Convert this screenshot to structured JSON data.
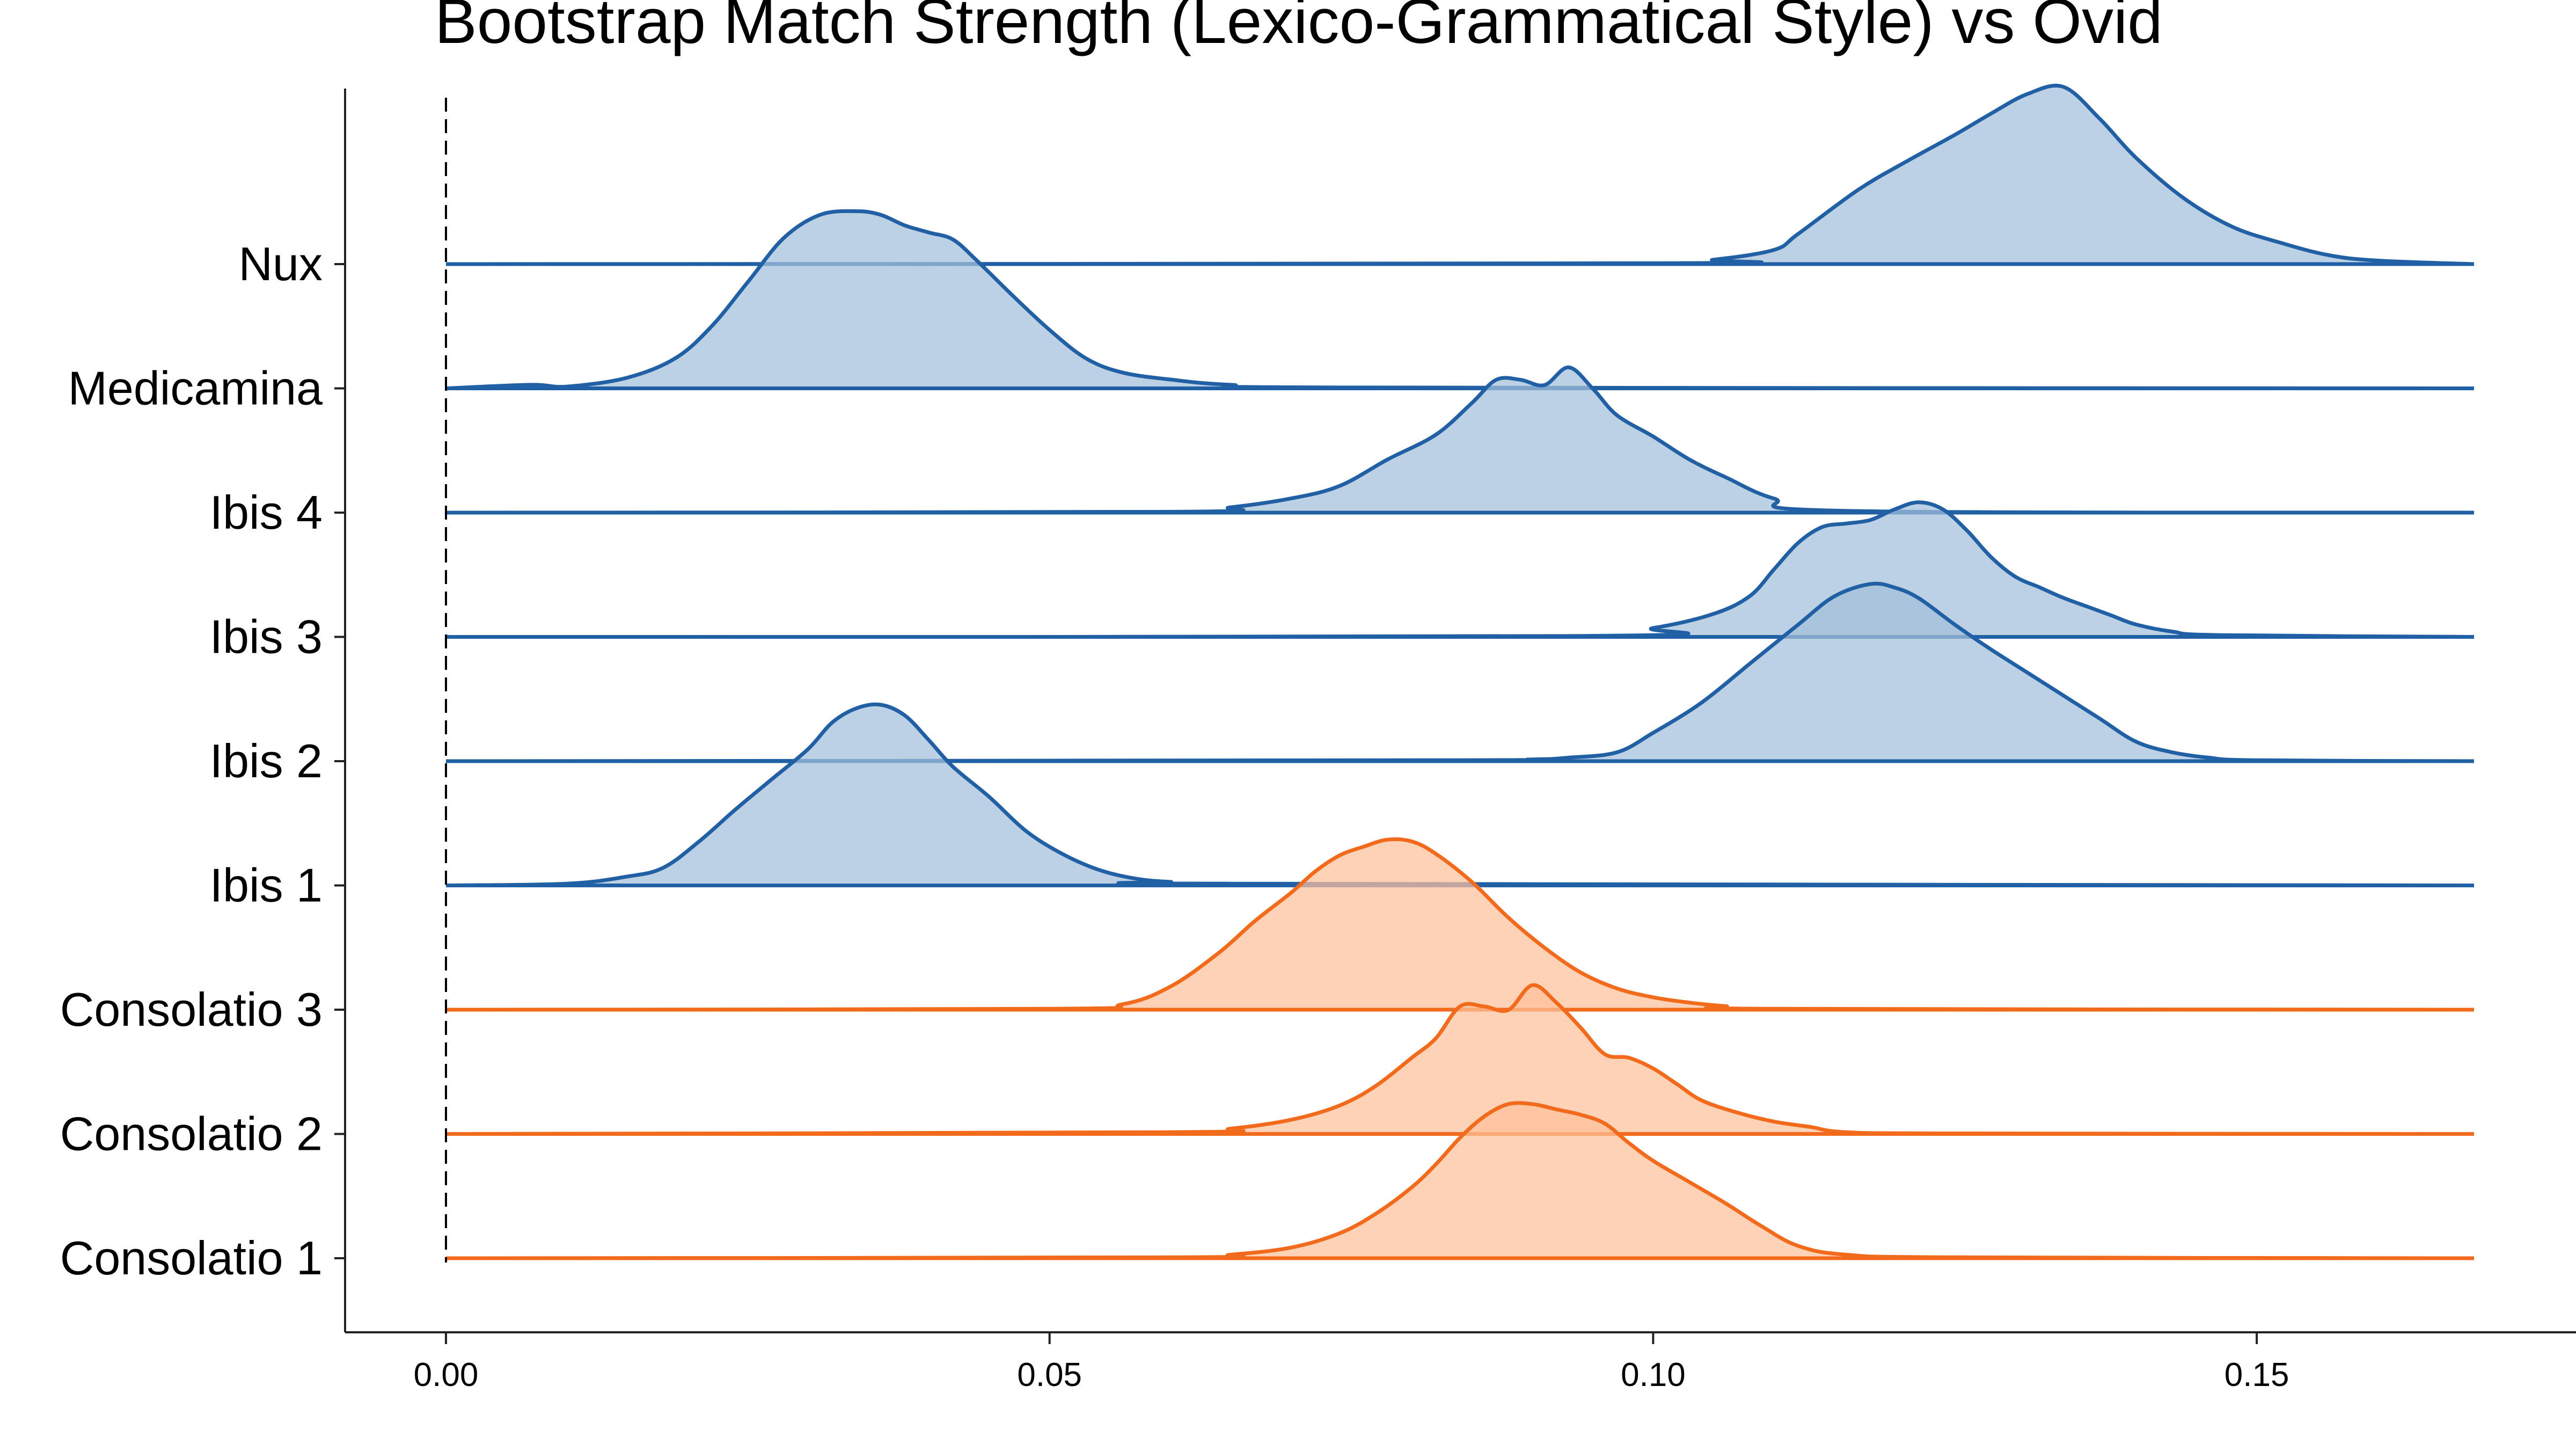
{
  "chart_data": {
    "type": "ridgeline",
    "title": "Bootstrap Match Strength (Lexico-Grammatical Style) vs Ovid",
    "xlabel": "",
    "ylabel": "",
    "xlim": [
      -0.0085,
      0.17
    ],
    "x_ticks": [
      "0.00",
      "0.05",
      "0.10",
      "0.15"
    ],
    "x_tick_values": [
      0.0,
      0.05,
      0.1,
      0.15
    ],
    "reference_line_x": 0.0,
    "grid": false,
    "colors": {
      "blue_line": "#2160a4",
      "blue_fill": "#a3bfdb",
      "orange_line": "#f26a1b",
      "orange_fill": "#fdc19b"
    },
    "series": [
      {
        "name": "Nux",
        "group": "blue",
        "x": [
          0.0,
          0.1,
          0.105,
          0.11,
          0.112,
          0.117,
          0.121,
          0.125,
          0.128,
          0.131,
          0.134,
          0.137,
          0.14,
          0.144,
          0.148,
          0.152,
          0.156,
          0.16,
          0.168
        ],
        "density": [
          0,
          0.005,
          0.025,
          0.08,
          0.17,
          0.42,
          0.58,
          0.73,
          0.85,
          0.96,
          1.0,
          0.82,
          0.6,
          0.37,
          0.21,
          0.12,
          0.05,
          0.02,
          0
        ]
      },
      {
        "name": "Medicamina",
        "group": "blue",
        "x": [
          0.0,
          0.007,
          0.01,
          0.015,
          0.019,
          0.022,
          0.025,
          0.028,
          0.031,
          0.034,
          0.036,
          0.038,
          0.04,
          0.042,
          0.044,
          0.047,
          0.05,
          0.053,
          0.056,
          0.06,
          0.065,
          0.075,
          0.168
        ],
        "density": [
          0,
          0.02,
          0.01,
          0.06,
          0.17,
          0.35,
          0.6,
          0.85,
          0.98,
          1.0,
          0.98,
          0.92,
          0.88,
          0.84,
          0.72,
          0.52,
          0.33,
          0.17,
          0.09,
          0.05,
          0.02,
          0.005,
          0
        ]
      },
      {
        "name": "Ibis 4",
        "group": "blue",
        "x": [
          0.0,
          0.06,
          0.065,
          0.07,
          0.074,
          0.078,
          0.082,
          0.085,
          0.087,
          0.089,
          0.091,
          0.093,
          0.095,
          0.097,
          0.1,
          0.103,
          0.106,
          0.11,
          0.116,
          0.168
        ],
        "density": [
          0,
          0.005,
          0.03,
          0.08,
          0.15,
          0.3,
          0.44,
          0.62,
          0.75,
          0.75,
          0.72,
          0.82,
          0.7,
          0.55,
          0.43,
          0.3,
          0.2,
          0.08,
          0.01,
          0
        ]
      },
      {
        "name": "Ibis 3",
        "group": "blue",
        "x": [
          0.0,
          0.094,
          0.1,
          0.105,
          0.108,
          0.11,
          0.112,
          0.114,
          0.116,
          0.118,
          0.12,
          0.122,
          0.124,
          0.126,
          0.128,
          0.13,
          0.132,
          0.134,
          0.136,
          0.138,
          0.14,
          0.143,
          0.147,
          0.168
        ],
        "density": [
          0,
          0.005,
          0.05,
          0.13,
          0.23,
          0.38,
          0.53,
          0.62,
          0.64,
          0.66,
          0.72,
          0.76,
          0.72,
          0.6,
          0.45,
          0.34,
          0.28,
          0.22,
          0.17,
          0.12,
          0.07,
          0.03,
          0.01,
          0
        ]
      },
      {
        "name": "Ibis 2",
        "group": "blue",
        "x": [
          0.0,
          0.08,
          0.09,
          0.093,
          0.097,
          0.1,
          0.104,
          0.108,
          0.112,
          0.115,
          0.118,
          0.12,
          0.122,
          0.125,
          0.128,
          0.131,
          0.134,
          0.137,
          0.14,
          0.143,
          0.146,
          0.15,
          0.168
        ],
        "density": [
          0,
          0.005,
          0.01,
          0.02,
          0.05,
          0.16,
          0.33,
          0.55,
          0.77,
          0.93,
          1.0,
          0.98,
          0.92,
          0.77,
          0.63,
          0.5,
          0.37,
          0.24,
          0.11,
          0.05,
          0.02,
          0.005,
          0
        ]
      },
      {
        "name": "Ibis 1",
        "group": "blue",
        "x": [
          0.0,
          0.01,
          0.015,
          0.018,
          0.021,
          0.024,
          0.027,
          0.03,
          0.032,
          0.034,
          0.036,
          0.038,
          0.04,
          0.042,
          0.045,
          0.048,
          0.051,
          0.054,
          0.057,
          0.06,
          0.065,
          0.168
        ],
        "density": [
          0,
          0.01,
          0.05,
          0.1,
          0.25,
          0.43,
          0.6,
          0.77,
          0.92,
          1.0,
          1.02,
          0.96,
          0.82,
          0.67,
          0.5,
          0.31,
          0.18,
          0.09,
          0.04,
          0.02,
          0.01,
          0
        ]
      },
      {
        "name": "Consolatio 3",
        "group": "orange",
        "x": [
          0.0,
          0.05,
          0.056,
          0.06,
          0.064,
          0.067,
          0.07,
          0.072,
          0.074,
          0.076,
          0.078,
          0.08,
          0.082,
          0.085,
          0.088,
          0.091,
          0.094,
          0.097,
          0.1,
          0.103,
          0.106,
          0.11,
          0.168
        ],
        "density": [
          0,
          0.005,
          0.03,
          0.13,
          0.32,
          0.5,
          0.66,
          0.78,
          0.87,
          0.92,
          0.96,
          0.95,
          0.88,
          0.72,
          0.52,
          0.35,
          0.21,
          0.12,
          0.07,
          0.04,
          0.02,
          0.005,
          0
        ]
      },
      {
        "name": "Consolatio 2",
        "group": "orange",
        "x": [
          0.0,
          0.06,
          0.065,
          0.07,
          0.074,
          0.077,
          0.08,
          0.082,
          0.084,
          0.086,
          0.088,
          0.09,
          0.092,
          0.094,
          0.096,
          0.098,
          0.1,
          0.102,
          0.104,
          0.107,
          0.11,
          0.113,
          0.116,
          0.125,
          0.168
        ],
        "density": [
          0,
          0.01,
          0.03,
          0.08,
          0.16,
          0.27,
          0.43,
          0.54,
          0.72,
          0.72,
          0.7,
          0.84,
          0.74,
          0.6,
          0.45,
          0.43,
          0.37,
          0.28,
          0.19,
          0.12,
          0.07,
          0.04,
          0.01,
          0.003,
          0
        ]
      },
      {
        "name": "Consolatio 1",
        "group": "orange",
        "x": [
          0.0,
          0.06,
          0.065,
          0.07,
          0.074,
          0.077,
          0.08,
          0.082,
          0.084,
          0.086,
          0.088,
          0.09,
          0.092,
          0.094,
          0.096,
          0.098,
          0.1,
          0.103,
          0.106,
          0.109,
          0.112,
          0.116,
          0.125,
          0.168
        ],
        "density": [
          0,
          0.005,
          0.02,
          0.06,
          0.14,
          0.25,
          0.4,
          0.53,
          0.68,
          0.8,
          0.87,
          0.87,
          0.84,
          0.81,
          0.76,
          0.65,
          0.55,
          0.43,
          0.31,
          0.18,
          0.07,
          0.02,
          0.005,
          0
        ]
      }
    ]
  }
}
